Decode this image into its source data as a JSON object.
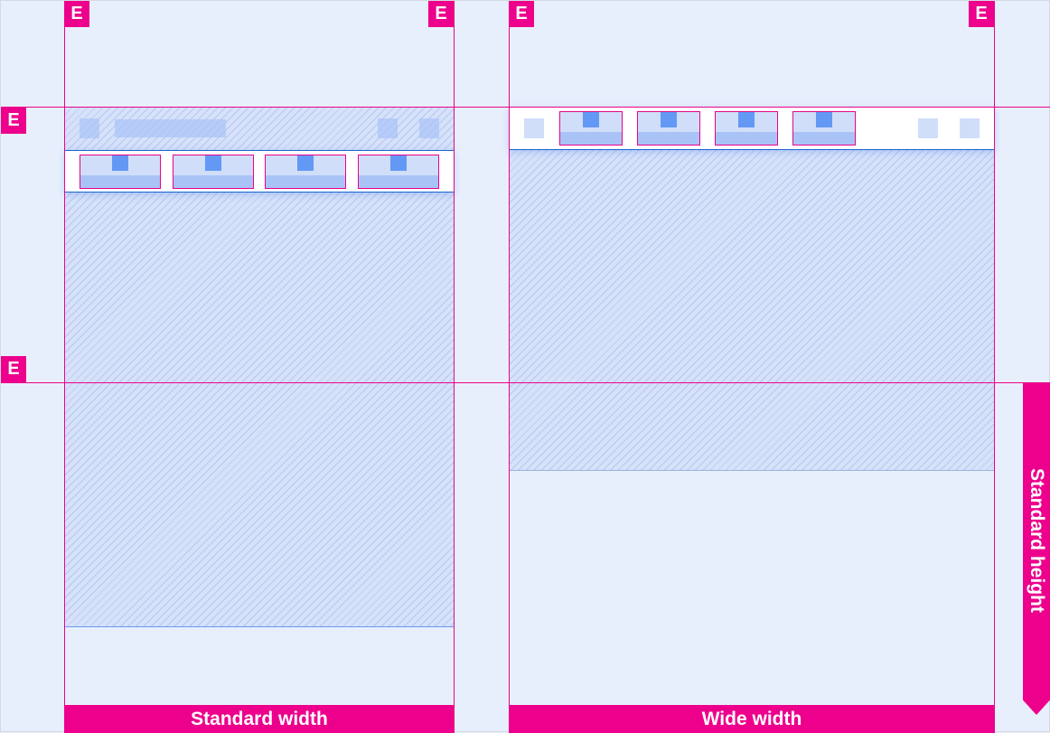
{
  "badge_letter": "E",
  "labels": {
    "standard_width": "Standard width",
    "wide_width": "Wide width",
    "standard_height": "Standard height"
  },
  "colors": {
    "keyline": "#ec008c",
    "background": "#e8effc",
    "tab_icon": "#6399f5"
  },
  "standard_tabs": 4,
  "wide_tabs": 4
}
